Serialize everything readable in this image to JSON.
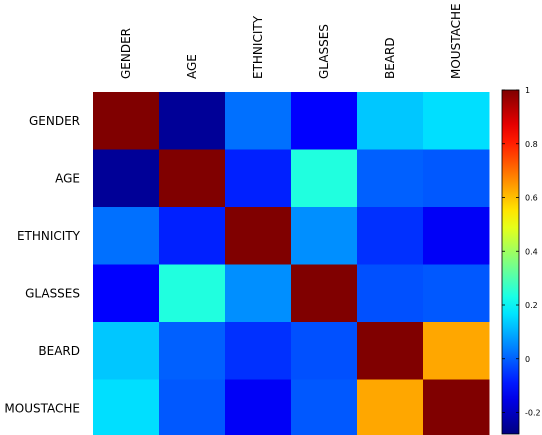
{
  "chart_data": {
    "type": "heatmap",
    "title": "",
    "xlabel": "",
    "ylabel": "",
    "x_labels": [
      "GENDER",
      "AGE",
      "ETHNICITY",
      "GLASSES",
      "BEARD",
      "MOUSTACHE"
    ],
    "y_labels": [
      "GENDER",
      "AGE",
      "ETHNICITY",
      "GLASSES",
      "BEARD",
      "MOUSTACHE"
    ],
    "values": [
      [
        1.0,
        -0.25,
        0.02,
        -0.12,
        0.13,
        0.16
      ],
      [
        -0.25,
        1.0,
        -0.08,
        0.24,
        0.0,
        -0.01
      ],
      [
        0.02,
        -0.08,
        1.0,
        0.06,
        -0.06,
        -0.13
      ],
      [
        -0.12,
        0.24,
        0.06,
        1.0,
        -0.02,
        -0.01
      ],
      [
        0.13,
        0.0,
        -0.06,
        -0.02,
        1.0,
        0.63
      ],
      [
        0.16,
        -0.01,
        -0.13,
        -0.01,
        0.63,
        1.0
      ]
    ],
    "colormap": "jet",
    "colorbar": {
      "min": -0.28,
      "max": 1.0,
      "ticks": [
        -0.2,
        0,
        0.2,
        0.4,
        0.6,
        0.8,
        1
      ],
      "tick_labels": [
        "-0.2",
        "0",
        "0.2",
        "0.4",
        "0.6",
        "0.8",
        "1"
      ],
      "placement": "right"
    },
    "x_label_orientation": "vertical-top",
    "grid": false
  }
}
